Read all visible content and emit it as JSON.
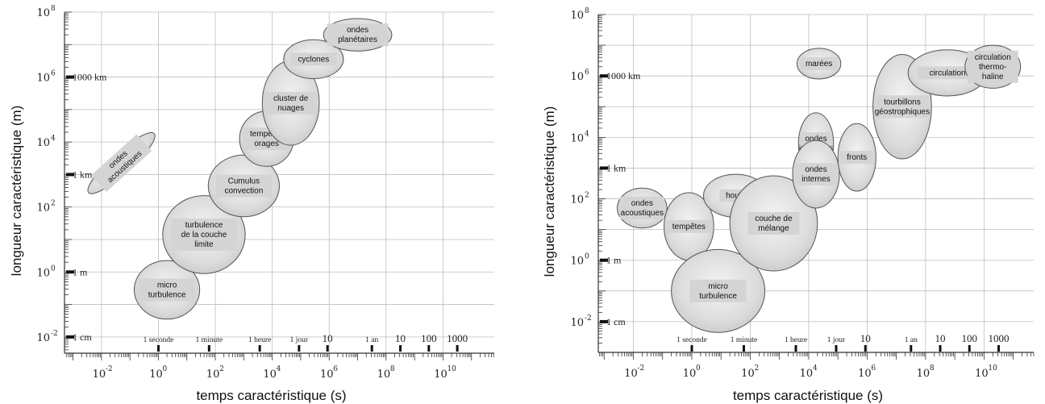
{
  "chart_data": [
    {
      "type": "scatter",
      "xlabel": "temps caractéristique (s)",
      "ylabel": "longueur caractéristique (m)",
      "x_log10_range": [
        -3.3,
        11.8
      ],
      "y_log10_range": [
        -2.5,
        8
      ],
      "x_ticks": [
        -2,
        0,
        2,
        4,
        6,
        8,
        10
      ],
      "y_ticks": [
        -2,
        0,
        2,
        4,
        6,
        8
      ],
      "y_reference_labels": [
        {
          "log10_y": 6,
          "label": "1000 km"
        },
        {
          "log10_y": 3,
          "label": "1 km"
        },
        {
          "log10_y": 0,
          "label": "1 m"
        },
        {
          "log10_y": -2,
          "label": "1 cm"
        }
      ],
      "x_reference_labels": [
        {
          "log10_x": 0,
          "label": "1 seconde"
        },
        {
          "log10_x": 1.78,
          "label": "1 minute"
        },
        {
          "log10_x": 3.56,
          "label": "1 heure"
        },
        {
          "log10_x": 4.94,
          "label": "1 jour"
        },
        {
          "log10_x": 5.94,
          "label": "10"
        },
        {
          "log10_x": 7.5,
          "label": "1 an"
        },
        {
          "log10_x": 8.5,
          "label": "10"
        },
        {
          "log10_x": 9.5,
          "label": "100"
        },
        {
          "log10_x": 10.5,
          "label": "1000"
        }
      ],
      "phenomena": [
        {
          "label": "micro turbulence",
          "log10_x": 0.3,
          "log10_y": -0.55,
          "log10_rx": 1.15,
          "log10_ry": 0.9,
          "angle": 0
        },
        {
          "label": "turbulence de la couche limite",
          "log10_x": 1.6,
          "log10_y": 1.15,
          "log10_rx": 1.45,
          "log10_ry": 1.2,
          "angle": 0
        },
        {
          "label": "Cumulus convection",
          "log10_x": 3,
          "log10_y": 2.65,
          "log10_rx": 1.25,
          "log10_ry": 0.95,
          "angle": 0
        },
        {
          "label": "tempêtes orages",
          "log10_x": 3.8,
          "log10_y": 4.1,
          "log10_rx": 0.95,
          "log10_ry": 0.85,
          "angle": 0
        },
        {
          "label": "cluster de nuages",
          "log10_x": 4.65,
          "log10_y": 5.2,
          "log10_rx": 1.0,
          "log10_ry": 1.3,
          "angle": 0
        },
        {
          "label": "cyclones",
          "log10_x": 5.45,
          "log10_y": 6.55,
          "log10_rx": 1.05,
          "log10_ry": 0.6,
          "angle": 0
        },
        {
          "label": "ondes planétaires",
          "log10_x": 7,
          "log10_y": 7.3,
          "log10_rx": 1.2,
          "log10_ry": 0.5,
          "angle": 0
        },
        {
          "label": "ondes acoustiques",
          "log10_x": -1.3,
          "log10_y": 3.35,
          "log10_rx": 1.55,
          "log10_ry": 0.32,
          "angle": -42
        }
      ]
    },
    {
      "type": "scatter",
      "xlabel": "temps caractéristique (s)",
      "ylabel": "longueur caractéristique (m)",
      "x_log10_range": [
        -3.2,
        11.7
      ],
      "y_log10_range": [
        -3,
        8
      ],
      "x_ticks": [
        -2,
        0,
        2,
        4,
        6,
        8,
        10
      ],
      "y_ticks": [
        -2,
        0,
        2,
        4,
        6,
        8
      ],
      "y_reference_labels": [
        {
          "log10_y": 6,
          "label": "1000 km"
        },
        {
          "log10_y": 3,
          "label": "1 km"
        },
        {
          "log10_y": 0,
          "label": "1 m"
        },
        {
          "log10_y": -2,
          "label": "1 cm"
        }
      ],
      "x_reference_labels": [
        {
          "log10_x": 0,
          "label": "1 seconde"
        },
        {
          "log10_x": 1.78,
          "label": "1 minute"
        },
        {
          "log10_x": 3.56,
          "label": "1 heure"
        },
        {
          "log10_x": 4.94,
          "label": "1 jour"
        },
        {
          "log10_x": 5.94,
          "label": "10"
        },
        {
          "log10_x": 7.5,
          "label": "1 an"
        },
        {
          "log10_x": 8.5,
          "label": "10"
        },
        {
          "log10_x": 9.5,
          "label": "100"
        },
        {
          "log10_x": 10.5,
          "label": "1000"
        }
      ],
      "phenomena": [
        {
          "label": "ondes acoustiques",
          "log10_x": -1.7,
          "log10_y": 1.7,
          "log10_rx": 0.85,
          "log10_ry": 0.65,
          "angle": 0
        },
        {
          "label": "tempêtes",
          "log10_x": -0.1,
          "log10_y": 1.1,
          "log10_rx": 0.85,
          "log10_ry": 1.1,
          "angle": 0
        },
        {
          "label": "houle",
          "log10_x": 1.5,
          "log10_y": 2.1,
          "log10_rx": 1.1,
          "log10_ry": 0.7,
          "angle": 0
        },
        {
          "label": "micro turbulence",
          "log10_x": 0.9,
          "log10_y": -1.0,
          "log10_rx": 1.6,
          "log10_ry": 1.35,
          "angle": 0
        },
        {
          "label": "couche de mélange",
          "log10_x": 2.8,
          "log10_y": 1.2,
          "log10_rx": 1.5,
          "log10_ry": 1.55,
          "angle": 0
        },
        {
          "label": "ondes inertielles",
          "log10_x": 4.25,
          "log10_y": 3.8,
          "log10_rx": 0.6,
          "log10_ry": 1.0,
          "angle": 0
        },
        {
          "label": "ondes internes",
          "log10_x": 4.25,
          "log10_y": 2.8,
          "log10_rx": 0.8,
          "log10_ry": 1.1,
          "angle": 0
        },
        {
          "label": "fronts",
          "log10_x": 5.65,
          "log10_y": 3.35,
          "log10_rx": 0.65,
          "log10_ry": 1.1,
          "angle": 0
        },
        {
          "label": "marées",
          "log10_x": 4.35,
          "log10_y": 6.4,
          "log10_rx": 0.75,
          "log10_ry": 0.5,
          "angle": 0
        },
        {
          "label": "tourbillons géostrophiques",
          "log10_x": 7.2,
          "log10_y": 5.0,
          "log10_rx": 1.0,
          "log10_ry": 1.7,
          "angle": 0
        },
        {
          "label": "circulation",
          "log10_x": 8.75,
          "log10_y": 6.1,
          "log10_rx": 1.35,
          "log10_ry": 0.75,
          "angle": 0
        },
        {
          "label": "circulation thermo- haline",
          "log10_x": 10.3,
          "log10_y": 6.3,
          "log10_rx": 0.95,
          "log10_ry": 0.7,
          "angle": 0
        }
      ]
    }
  ]
}
